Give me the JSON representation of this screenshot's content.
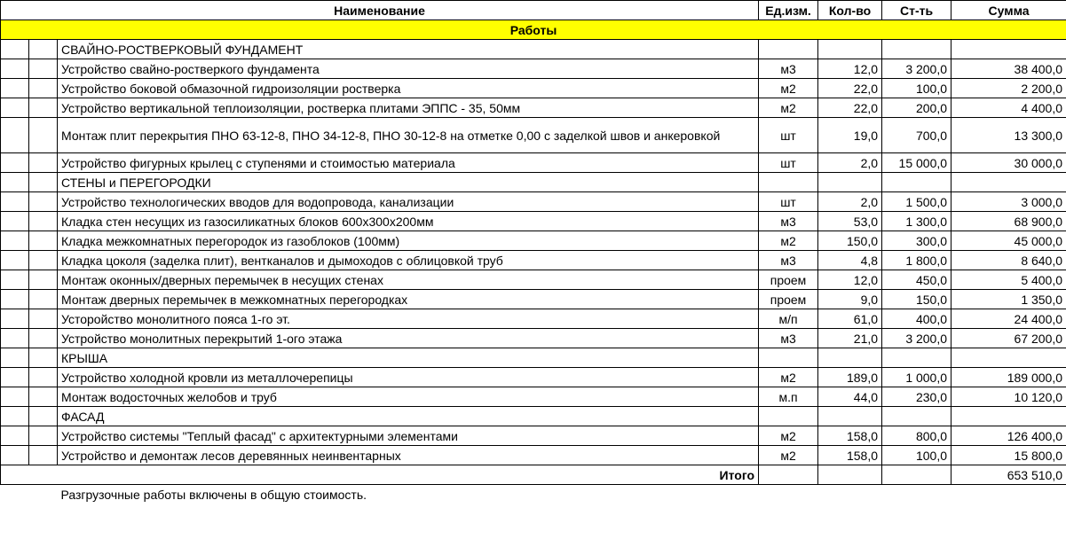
{
  "columns": {
    "name": "Наименование",
    "unit": "Ед.изм.",
    "qty": "Кол-во",
    "price": "Ст-ть",
    "sum": "Сумма"
  },
  "section_title": "Работы",
  "rows": [
    {
      "type": "heading",
      "name": "СВАЙНО-РОСТВЕРКОВЫЙ ФУНДАМЕНТ"
    },
    {
      "type": "item",
      "name": "Устройство свайно-ростверкого фундамента",
      "unit": "м3",
      "qty": "12,0",
      "price": "3 200,0",
      "sum": "38 400,0"
    },
    {
      "type": "item",
      "name": "Устройство боковой обмазочной гидроизоляции ростверка",
      "unit": "м2",
      "qty": "22,0",
      "price": "100,0",
      "sum": "2 200,0"
    },
    {
      "type": "item",
      "name": "Устройство вертикальной теплоизоляции, ростверка плитами ЭППС - 35, 50мм",
      "unit": "м2",
      "qty": "22,0",
      "price": "200,0",
      "sum": "4 400,0"
    },
    {
      "type": "item",
      "name": "Монтаж плит перекрытия ПНО 63-12-8, ПНО 34-12-8, ПНО 30-12-8 на отметке 0,00 с заделкой швов и анкеровкой",
      "unit": "шт",
      "qty": "19,0",
      "price": "700,0",
      "sum": "13 300,0",
      "tall": true
    },
    {
      "type": "item",
      "name": "Устройство фигурных крылец с ступенями и стоимостью материала",
      "unit": "шт",
      "qty": "2,0",
      "price": "15 000,0",
      "sum": "30 000,0"
    },
    {
      "type": "heading",
      "name": "СТЕНЫ и ПЕРЕГОРОДКИ"
    },
    {
      "type": "item",
      "name": "Устройство технологических вводов для водопровода, канализации",
      "unit": "шт",
      "qty": "2,0",
      "price": "1 500,0",
      "sum": "3 000,0"
    },
    {
      "type": "item",
      "name": "Кладка стен несущих из газосиликатных блоков 600х300х200мм",
      "unit": "м3",
      "qty": "53,0",
      "price": "1 300,0",
      "sum": "68 900,0"
    },
    {
      "type": "item",
      "name": "Кладка межкомнатных перегородок из газоблоков (100мм)",
      "unit": "м2",
      "qty": "150,0",
      "price": "300,0",
      "sum": "45 000,0"
    },
    {
      "type": "item",
      "name": "Кладка цоколя (заделка плит), вентканалов и дымоходов с облицовкой труб",
      "unit": "м3",
      "qty": "4,8",
      "price": "1 800,0",
      "sum": "8 640,0"
    },
    {
      "type": "item",
      "name": "Монтаж оконных/дверных перемычек в несущих стенах",
      "unit": "проем",
      "qty": "12,0",
      "price": "450,0",
      "sum": "5 400,0"
    },
    {
      "type": "item",
      "name": "Монтаж дверных перемычек в межкомнатных перегородках",
      "unit": "проем",
      "qty": "9,0",
      "price": "150,0",
      "sum": "1 350,0"
    },
    {
      "type": "item",
      "name": "Усторойство монолитного пояса 1-го эт.",
      "unit": "м/п",
      "qty": "61,0",
      "price": "400,0",
      "sum": "24 400,0"
    },
    {
      "type": "item",
      "name": "Устройство монолитных перекрытий  1-ого этажа",
      "unit": "м3",
      "qty": "21,0",
      "price": "3 200,0",
      "sum": "67 200,0"
    },
    {
      "type": "heading",
      "name": "КРЫША"
    },
    {
      "type": "item",
      "name": "Устройство холодной кровли из металлочерепицы",
      "unit": "м2",
      "qty": "189,0",
      "price": "1 000,0",
      "sum": "189 000,0"
    },
    {
      "type": "item",
      "name": "Монтаж водосточных желобов и труб",
      "unit": "м.п",
      "qty": "44,0",
      "price": "230,0",
      "sum": "10 120,0"
    },
    {
      "type": "heading",
      "name": "ФАСАД"
    },
    {
      "type": "item",
      "name": "Устройство системы \"Теплый фасад\" с архитектурными элементами",
      "unit": "м2",
      "qty": "158,0",
      "price": "800,0",
      "sum": "126 400,0"
    },
    {
      "type": "item",
      "name": "Устройство и демонтаж лесов деревянных неинвентарных",
      "unit": "м2",
      "qty": "158,0",
      "price": "100,0",
      "sum": "15 800,0"
    }
  ],
  "total": {
    "label": "Итого",
    "sum": "653 510,0"
  },
  "footnote": "Разгрузочные работы включены в общую стоимость."
}
